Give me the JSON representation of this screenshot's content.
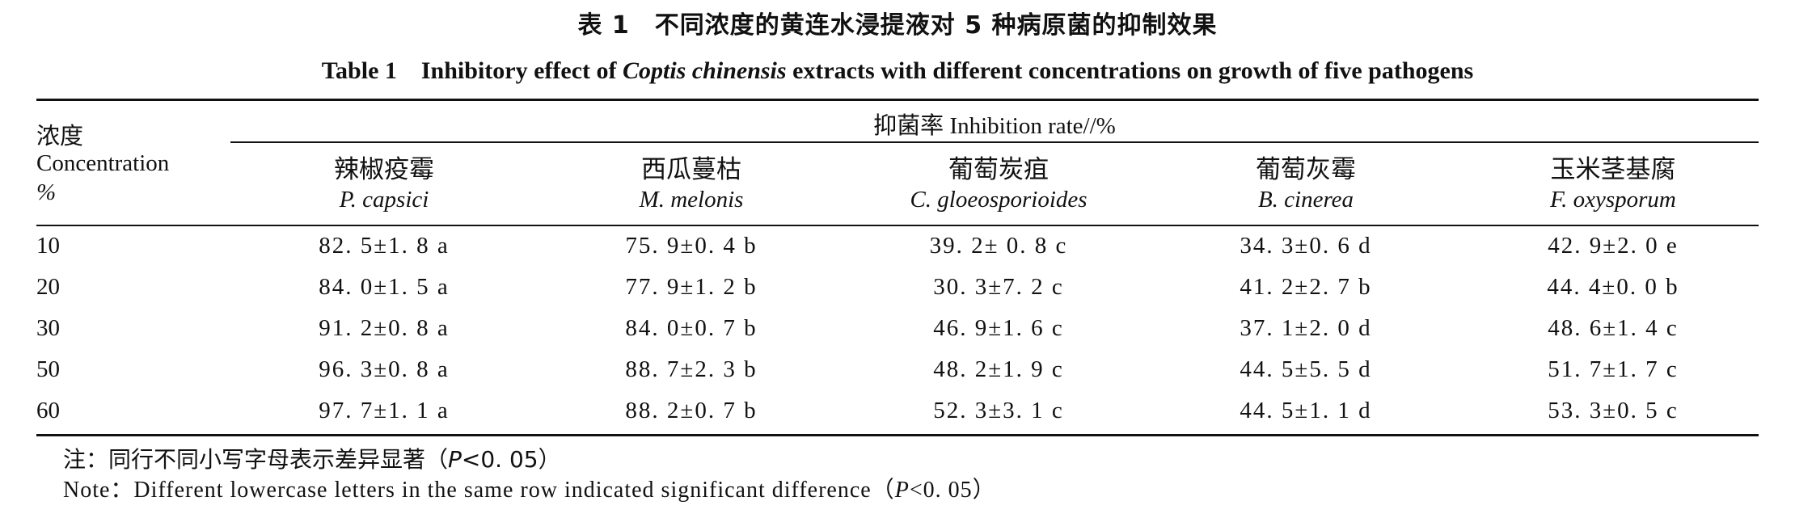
{
  "title_cn": "表 1　不同浓度的黄连水浸提液对 5 种病原菌的抑制效果",
  "title_en_prefix": "Table 1　Inhibitory effect of ",
  "title_en_species": "Coptis chinensis",
  "title_en_suffix": " extracts with different concentrations on growth of five pathogens",
  "stub_header": {
    "cn": "浓度",
    "en": "Concentration",
    "unit": "%"
  },
  "spanner": {
    "cn": "抑菌率",
    "en": "Inhibition rate//%"
  },
  "columns": [
    {
      "cn": "辣椒疫霉",
      "sci": "P. capsici"
    },
    {
      "cn": "西瓜蔓枯",
      "sci": "M. melonis"
    },
    {
      "cn": "葡萄炭疽",
      "sci": "C. gloeosporioides"
    },
    {
      "cn": "葡萄灰霉",
      "sci": "B. cinerea"
    },
    {
      "cn": "玉米茎基腐",
      "sci": "F. oxysporum"
    }
  ],
  "rows": [
    {
      "conc": "10",
      "cells": [
        "82. 5±1. 8 a",
        "75. 9±0. 4 b",
        "39. 2± 0. 8 c",
        "34. 3±0. 6 d",
        "42. 9±2. 0 e"
      ]
    },
    {
      "conc": "20",
      "cells": [
        "84. 0±1. 5 a",
        "77. 9±1. 2 b",
        "30. 3±7. 2 c",
        "41. 2±2. 7 b",
        "44. 4±0. 0 b"
      ]
    },
    {
      "conc": "30",
      "cells": [
        "91. 2±0. 8 a",
        "84. 0±0. 7 b",
        "46. 9±1. 6 c",
        "37. 1±2. 0 d",
        "48. 6±1. 4 c"
      ]
    },
    {
      "conc": "50",
      "cells": [
        "96. 3±0. 8 a",
        "88. 7±2. 3 b",
        "48. 2±1. 9 c",
        "44. 5±5. 5 d",
        "51. 7±1. 7 c"
      ]
    },
    {
      "conc": "60",
      "cells": [
        "97. 7±1. 1 a",
        "88. 2±0. 7 b",
        "52. 3±3. 1 c",
        "44. 5±1. 1 d",
        "53. 3±0. 5 c"
      ]
    }
  ],
  "note_cn_prefix": "注：同行不同小写字母表示差异显著（",
  "note_cn_p": "P",
  "note_cn_suffix": "<0. 05）",
  "note_en_prefix": "Note：Different lowercase letters in the same row indicated significant difference（",
  "note_en_p": "P",
  "note_en_suffix": "<0. 05）"
}
